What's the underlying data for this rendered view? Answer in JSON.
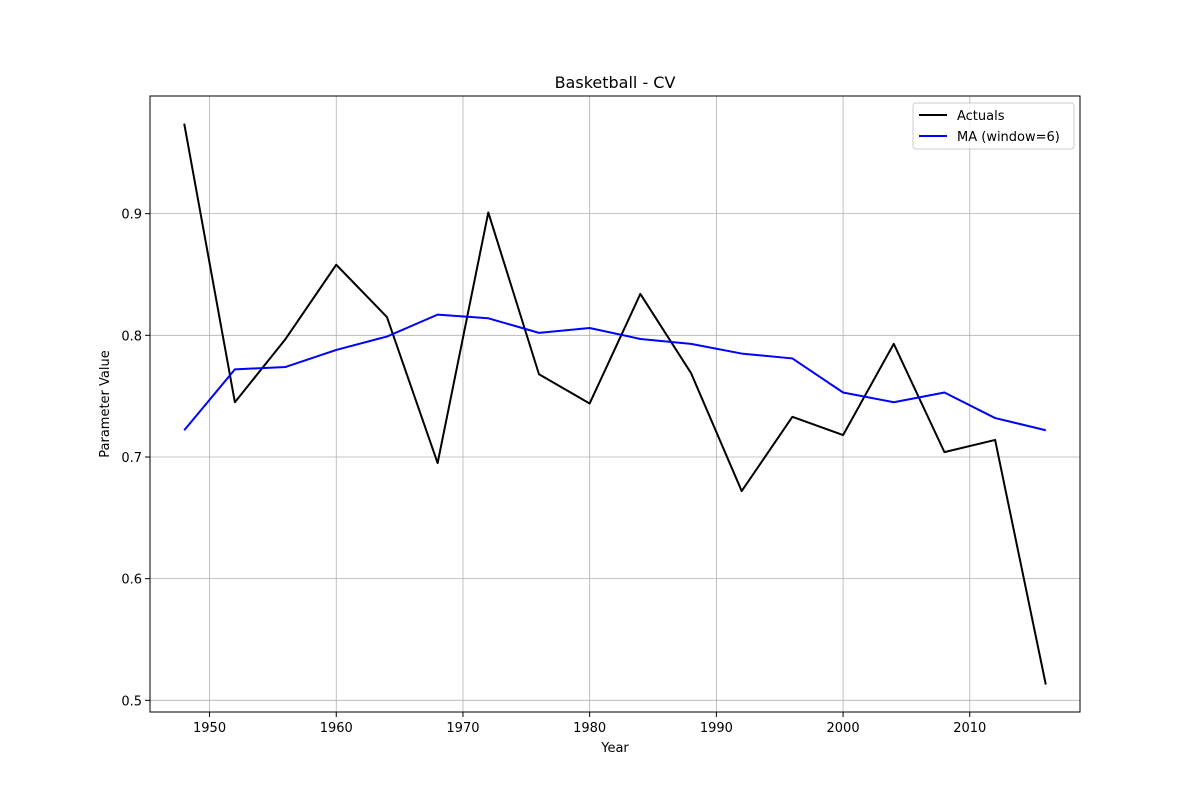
{
  "chart_data": {
    "type": "line",
    "title": "Basketball - CV",
    "xlabel": "Year",
    "ylabel": "Parameter Value",
    "x": [
      1948,
      1952,
      1956,
      1960,
      1964,
      1968,
      1972,
      1976,
      1980,
      1984,
      1988,
      1992,
      1996,
      2000,
      2004,
      2008,
      2012,
      2016
    ],
    "series": [
      {
        "name": "Actuals",
        "color": "#000000",
        "values": [
          0.974,
          0.745,
          0.797,
          0.858,
          0.815,
          0.695,
          0.901,
          0.768,
          0.744,
          0.834,
          0.769,
          0.672,
          0.733,
          0.718,
          0.793,
          0.704,
          0.714,
          0.513
        ]
      },
      {
        "name": "MA (window=6)",
        "color": "#0000ff",
        "values": [
          0.722,
          0.772,
          0.774,
          0.788,
          0.799,
          0.817,
          0.814,
          0.802,
          0.806,
          0.797,
          0.793,
          0.785,
          0.781,
          0.753,
          0.745,
          0.753,
          0.732,
          0.722
        ]
      }
    ],
    "xlim": [
      1945.3,
      2018.7
    ],
    "ylim": [
      0.4904,
      0.9967
    ],
    "xticks": [
      1950,
      1960,
      1970,
      1980,
      1990,
      2000,
      2010
    ],
    "xtick_labels": [
      "1950",
      "1960",
      "1970",
      "1980",
      "1990",
      "2000",
      "2010"
    ],
    "yticks": [
      0.5,
      0.6,
      0.7,
      0.8,
      0.9
    ],
    "ytick_labels": [
      "0.5",
      "0.6",
      "0.7",
      "0.8",
      "0.9"
    ],
    "grid": true,
    "legend_position": "top-right"
  }
}
